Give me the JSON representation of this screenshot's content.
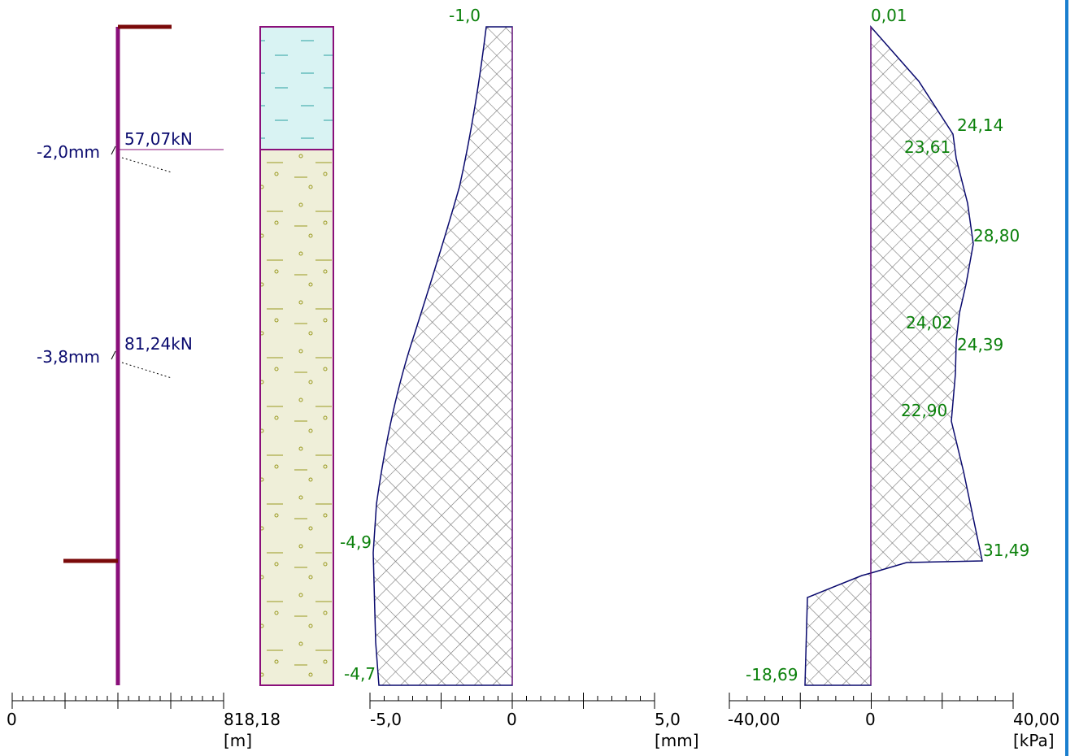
{
  "anchor_panel": {
    "anchors": [
      {
        "displacement": "-2,0mm",
        "force": "57,07kN"
      },
      {
        "displacement": "-3,8mm",
        "force": "81,24kN"
      }
    ],
    "axis": {
      "start": "0",
      "end": "818,18",
      "unit": "[m]"
    }
  },
  "deformation_panel": {
    "labels": [
      "-1,0",
      "-4,9",
      "-4,7"
    ],
    "axis": {
      "start": "-5,0",
      "middle": "0",
      "end": "5,0",
      "unit": "[mm]"
    }
  },
  "pressure_panel": {
    "labels": [
      "0,01",
      "24,14",
      "23,61",
      "28,80",
      "24,02",
      "24,39",
      "22,90",
      "31,49",
      "-18,69"
    ],
    "axis": {
      "start": "-40,00",
      "middle": "0",
      "end": "40,00",
      "unit": "[kPa]"
    }
  }
}
